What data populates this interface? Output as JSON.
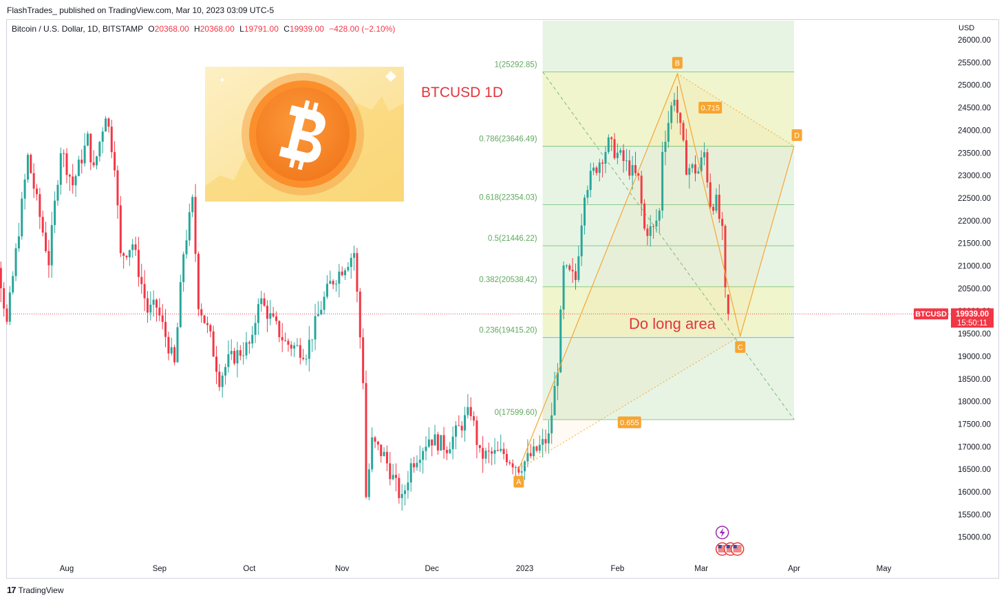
{
  "header": {
    "publisher_line": "FlashTrades_  published on TradingView.com, Mar 10, 2023 03:09 UTC-5"
  },
  "legend": {
    "symbol": "Bitcoin / U.S. Dollar, 1D, BITSTAMP",
    "open_label": "O",
    "open": "20368.00",
    "high_label": "H",
    "high": "20368.00",
    "low_label": "L",
    "low": "19791.00",
    "close_label": "C",
    "close": "19939.00",
    "change": "−428.00 (−2.10%)"
  },
  "footer": {
    "brand": "TradingView",
    "logo_text": "17"
  },
  "colors": {
    "up": "#26a69a",
    "down": "#f23645",
    "accent_orange": "#f7a531",
    "fib_zone": "#e7f4e4",
    "fib_line": "#7cc47a",
    "yellow_zone": "#f1f5c9"
  },
  "chart_data": {
    "type": "candlestick",
    "title": "BTCUSD 1D",
    "currency": "USD",
    "ylim": [
      14500,
      26200
    ],
    "y_ticks": [
      "26000.00",
      "25500.00",
      "25000.00",
      "24500.00",
      "24000.00",
      "23500.00",
      "23000.00",
      "22500.00",
      "22000.00",
      "21500.00",
      "21000.00",
      "20500.00",
      "20000.00",
      "19500.00",
      "19000.00",
      "18500.00",
      "18000.00",
      "17500.00",
      "17000.00",
      "16500.00",
      "16000.00",
      "15500.00",
      "15000.00"
    ],
    "x_ticks": [
      {
        "label": "Aug",
        "date": "2022-08-01"
      },
      {
        "label": "Sep",
        "date": "2022-09-01"
      },
      {
        "label": "Oct",
        "date": "2022-10-01"
      },
      {
        "label": "Nov",
        "date": "2022-11-01"
      },
      {
        "label": "Dec",
        "date": "2022-12-01"
      },
      {
        "label": "2023",
        "date": "2023-01-01"
      },
      {
        "label": "Feb",
        "date": "2023-02-01"
      },
      {
        "label": "Mar",
        "date": "2023-03-01"
      },
      {
        "label": "Apr",
        "date": "2023-04-01"
      },
      {
        "label": "May",
        "date": "2023-05-01"
      }
    ],
    "first_date": "2022-07-02",
    "last_date": "2023-03-10",
    "anchors": [
      [
        "2022-07-02",
        19300
      ],
      [
        "2022-07-08",
        21600
      ],
      [
        "2022-07-12",
        19700
      ],
      [
        "2022-07-19",
        23400
      ],
      [
        "2022-07-26",
        21100
      ],
      [
        "2022-07-30",
        23600
      ],
      [
        "2022-08-03",
        22800
      ],
      [
        "2022-08-08",
        23800
      ],
      [
        "2022-08-10",
        23100
      ],
      [
        "2022-08-14",
        24400
      ],
      [
        "2022-08-17",
        23300
      ],
      [
        "2022-08-19",
        21200
      ],
      [
        "2022-08-23",
        21500
      ],
      [
        "2022-08-28",
        20000
      ],
      [
        "2022-08-31",
        20100
      ],
      [
        "2022-09-06",
        18800
      ],
      [
        "2022-09-09",
        21300
      ],
      [
        "2022-09-12",
        22400
      ],
      [
        "2022-09-14",
        20200
      ],
      [
        "2022-09-18",
        19400
      ],
      [
        "2022-09-21",
        18500
      ],
      [
        "2022-09-24",
        18900
      ],
      [
        "2022-10-02",
        19300
      ],
      [
        "2022-10-04",
        20300
      ],
      [
        "2022-10-13",
        19300
      ],
      [
        "2022-10-20",
        19100
      ],
      [
        "2022-10-25",
        20100
      ],
      [
        "2022-10-28",
        20600
      ],
      [
        "2022-11-05",
        21300
      ],
      [
        "2022-11-08",
        18500
      ],
      [
        "2022-11-09",
        15900
      ],
      [
        "2022-11-11",
        17100
      ],
      [
        "2022-11-15",
        16800
      ],
      [
        "2022-11-21",
        15800
      ],
      [
        "2022-11-24",
        16600
      ],
      [
        "2022-11-30",
        17200
      ],
      [
        "2022-12-06",
        17000
      ],
      [
        "2022-12-14",
        17800
      ],
      [
        "2022-12-17",
        16800
      ],
      [
        "2022-12-25",
        16850
      ],
      [
        "2022-12-30",
        16550
      ],
      [
        "2023-01-04",
        16850
      ],
      [
        "2023-01-09",
        17200
      ],
      [
        "2023-01-12",
        18800
      ],
      [
        "2023-01-14",
        20900
      ],
      [
        "2023-01-18",
        20700
      ],
      [
        "2023-01-21",
        22700
      ],
      [
        "2023-01-29",
        23700
      ],
      [
        "2023-02-02",
        23400
      ],
      [
        "2023-02-08",
        22900
      ],
      [
        "2023-02-10",
        21800
      ],
      [
        "2023-02-13",
        21800
      ],
      [
        "2023-02-15",
        22200
      ],
      [
        "2023-02-16",
        23600
      ],
      [
        "2023-02-20",
        24800
      ],
      [
        "2023-02-24",
        23200
      ],
      [
        "2023-02-28",
        23100
      ],
      [
        "2023-03-02",
        23500
      ],
      [
        "2023-03-04",
        22400
      ],
      [
        "2023-03-06",
        22400
      ],
      [
        "2023-03-08",
        21700
      ],
      [
        "2023-03-09",
        20368
      ],
      [
        "2023-03-10",
        19939
      ]
    ],
    "last_candle": {
      "date": "2023-03-10",
      "open": 20368.0,
      "high": 20368.0,
      "low": 19791.0,
      "close": 19939.0
    },
    "fib_levels": [
      {
        "ratio": "1",
        "price": 25292.85,
        "label": "1(25292.85)"
      },
      {
        "ratio": "0.786",
        "price": 23646.49,
        "label": "0.786(23646.49)"
      },
      {
        "ratio": "0.618",
        "price": 22354.03,
        "label": "0.618(22354.03)"
      },
      {
        "ratio": "0.5",
        "price": 21446.22,
        "label": "0.5(21446.22)"
      },
      {
        "ratio": "0.382",
        "price": 20538.42,
        "label": "0.382(20538.42)"
      },
      {
        "ratio": "0.236",
        "price": 19415.2,
        "label": "0.236(19415.20)"
      },
      {
        "ratio": "0",
        "price": 17599.6,
        "label": "0(17599.60)"
      }
    ],
    "fib_range": {
      "start": "2023-01-07",
      "end": "2023-04-01"
    },
    "abcd_pattern": {
      "points": [
        {
          "label": "A",
          "date": "2022-12-30",
          "price": 16500
        },
        {
          "label": "B",
          "date": "2023-02-21",
          "price": 25250
        },
        {
          "label": "C",
          "date": "2023-03-14",
          "price": 19450
        },
        {
          "label": "D",
          "date": "2023-04-01",
          "price": 23650
        }
      ],
      "ratios": [
        {
          "label": "0.715",
          "date": "2023-03-04",
          "price": 24500
        },
        {
          "label": "0.655",
          "date": "2023-02-05",
          "price": 17540
        }
      ]
    },
    "long_area": {
      "label": "Do long area",
      "top": 20550,
      "bottom": 19450,
      "start": "2023-01-07",
      "end": "2023-04-01"
    },
    "price_label": {
      "symbol": "BTCUSD",
      "price": "19939.00",
      "countdown": "15:50:11"
    },
    "annotation_title": "BTCUSD 1D"
  }
}
